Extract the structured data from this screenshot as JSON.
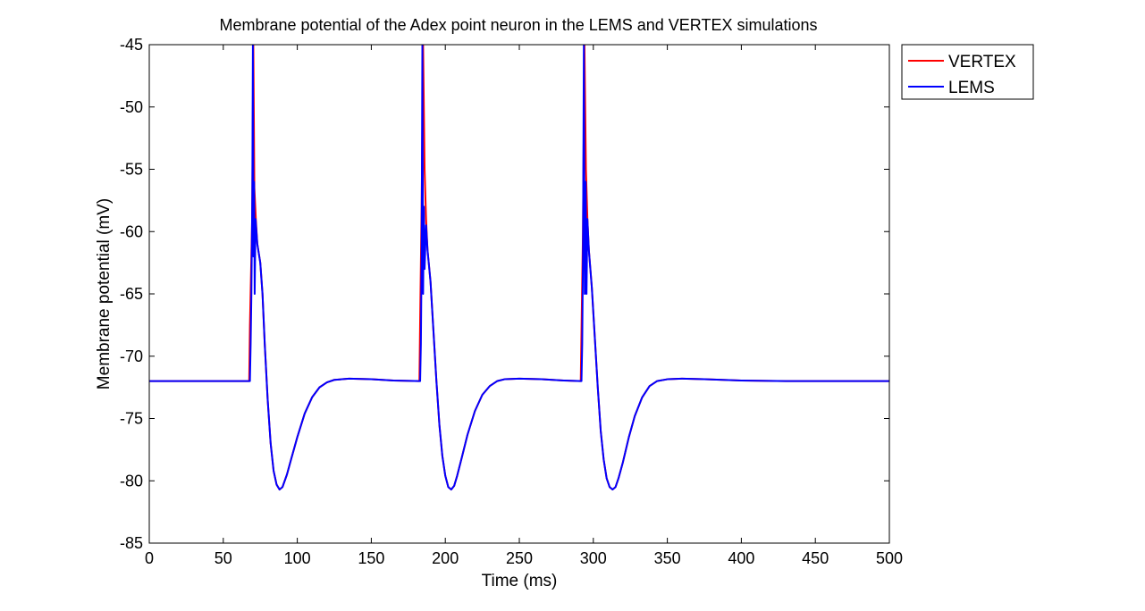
{
  "chart_data": {
    "type": "line",
    "title": "Membrane potential of the Adex point neuron in the LEMS and VERTEX simulations",
    "xlabel": "Time (ms)",
    "ylabel": "Membrane potential (mV)",
    "xlim": [
      0,
      500
    ],
    "ylim": [
      -85,
      -45
    ],
    "xticks": [
      "0",
      "50",
      "100",
      "150",
      "200",
      "250",
      "300",
      "350",
      "400",
      "450",
      "500"
    ],
    "yticks": [
      "-45",
      "-50",
      "-55",
      "-60",
      "-65",
      "-70",
      "-75",
      "-80",
      "-85"
    ],
    "grid": false,
    "legend_position": "outside-top-right",
    "series": [
      {
        "name": "VERTEX",
        "color": "#ff0000",
        "points": [
          [
            0,
            -72
          ],
          [
            67.5,
            -72
          ],
          [
            68,
            -67.5
          ],
          [
            69.5,
            -59
          ],
          [
            70.3,
            -45
          ],
          [
            71,
            -56.5
          ],
          [
            72,
            -59
          ],
          [
            73,
            -61
          ],
          [
            75,
            -62.5
          ],
          [
            76.5,
            -65
          ],
          [
            78,
            -69
          ],
          [
            80,
            -73.5
          ],
          [
            82,
            -77
          ],
          [
            84,
            -79.2
          ],
          [
            86,
            -80.3
          ],
          [
            88,
            -80.7
          ],
          [
            90,
            -80.5
          ],
          [
            93,
            -79.5
          ],
          [
            96,
            -78.2
          ],
          [
            100,
            -76.5
          ],
          [
            105,
            -74.6
          ],
          [
            110,
            -73.3
          ],
          [
            115,
            -72.5
          ],
          [
            120,
            -72.1
          ],
          [
            125,
            -71.9
          ],
          [
            135,
            -71.8
          ],
          [
            150,
            -71.85
          ],
          [
            165,
            -71.95
          ],
          [
            182.5,
            -72
          ],
          [
            183,
            -67
          ],
          [
            184,
            -58
          ],
          [
            185,
            -45
          ],
          [
            186,
            -55
          ],
          [
            187,
            -59
          ],
          [
            188,
            -61.5
          ],
          [
            190,
            -64
          ],
          [
            192,
            -68
          ],
          [
            194,
            -72
          ],
          [
            196,
            -75.5
          ],
          [
            198,
            -78
          ],
          [
            200,
            -79.6
          ],
          [
            202,
            -80.5
          ],
          [
            204,
            -80.7
          ],
          [
            206,
            -80.4
          ],
          [
            208,
            -79.6
          ],
          [
            211,
            -78.2
          ],
          [
            215,
            -76.3
          ],
          [
            220,
            -74.4
          ],
          [
            225,
            -73.1
          ],
          [
            230,
            -72.4
          ],
          [
            235,
            -72.0
          ],
          [
            240,
            -71.85
          ],
          [
            250,
            -71.8
          ],
          [
            265,
            -71.85
          ],
          [
            280,
            -71.95
          ],
          [
            291.5,
            -72
          ],
          [
            292,
            -68
          ],
          [
            293,
            -60
          ],
          [
            294,
            -45
          ],
          [
            295,
            -55
          ],
          [
            296,
            -59
          ],
          [
            297,
            -61.5
          ],
          [
            299,
            -64.5
          ],
          [
            301,
            -68.5
          ],
          [
            303,
            -72.5
          ],
          [
            305,
            -76
          ],
          [
            307,
            -78.3
          ],
          [
            309,
            -79.8
          ],
          [
            311,
            -80.5
          ],
          [
            313,
            -80.7
          ],
          [
            315,
            -80.5
          ],
          [
            317,
            -79.8
          ],
          [
            320,
            -78.5
          ],
          [
            324,
            -76.5
          ],
          [
            328,
            -74.8
          ],
          [
            333,
            -73.3
          ],
          [
            338,
            -72.4
          ],
          [
            343,
            -72.0
          ],
          [
            350,
            -71.85
          ],
          [
            360,
            -71.8
          ],
          [
            375,
            -71.85
          ],
          [
            400,
            -71.95
          ],
          [
            430,
            -72
          ],
          [
            500,
            -72
          ]
        ]
      },
      {
        "name": "LEMS",
        "color": "#0000ff",
        "points": [
          [
            0,
            -72
          ],
          [
            68,
            -72
          ],
          [
            68.5,
            -69
          ],
          [
            69,
            -65
          ],
          [
            69.6,
            -57
          ],
          [
            70,
            -45
          ],
          [
            70.4,
            -62
          ],
          [
            70.8,
            -56
          ],
          [
            71.2,
            -65
          ],
          [
            71.8,
            -59
          ],
          [
            73,
            -61
          ],
          [
            75,
            -62.5
          ],
          [
            76.5,
            -65
          ],
          [
            78,
            -69
          ],
          [
            80,
            -73.5
          ],
          [
            82,
            -77
          ],
          [
            84,
            -79.2
          ],
          [
            86,
            -80.3
          ],
          [
            88,
            -80.7
          ],
          [
            90,
            -80.5
          ],
          [
            93,
            -79.5
          ],
          [
            96,
            -78.2
          ],
          [
            100,
            -76.5
          ],
          [
            105,
            -74.6
          ],
          [
            110,
            -73.3
          ],
          [
            115,
            -72.5
          ],
          [
            120,
            -72.1
          ],
          [
            125,
            -71.9
          ],
          [
            135,
            -71.8
          ],
          [
            150,
            -71.85
          ],
          [
            165,
            -71.95
          ],
          [
            183,
            -72
          ],
          [
            183.5,
            -69
          ],
          [
            184,
            -62
          ],
          [
            184.5,
            -45
          ],
          [
            185,
            -65
          ],
          [
            185.5,
            -58
          ],
          [
            186,
            -63
          ],
          [
            187,
            -59.5
          ],
          [
            188,
            -61.5
          ],
          [
            190,
            -64
          ],
          [
            192,
            -68
          ],
          [
            194,
            -72
          ],
          [
            196,
            -75.5
          ],
          [
            198,
            -78
          ],
          [
            200,
            -79.6
          ],
          [
            202,
            -80.5
          ],
          [
            204,
            -80.7
          ],
          [
            206,
            -80.4
          ],
          [
            208,
            -79.6
          ],
          [
            211,
            -78.2
          ],
          [
            215,
            -76.3
          ],
          [
            220,
            -74.4
          ],
          [
            225,
            -73.1
          ],
          [
            230,
            -72.4
          ],
          [
            235,
            -72.0
          ],
          [
            240,
            -71.85
          ],
          [
            250,
            -71.8
          ],
          [
            265,
            -71.85
          ],
          [
            280,
            -71.95
          ],
          [
            292,
            -72
          ],
          [
            292.5,
            -69
          ],
          [
            293,
            -62
          ],
          [
            293.6,
            -45
          ],
          [
            294.2,
            -65
          ],
          [
            294.8,
            -56
          ],
          [
            295.4,
            -65
          ],
          [
            296,
            -59
          ],
          [
            297,
            -61.5
          ],
          [
            299,
            -64.5
          ],
          [
            301,
            -68.5
          ],
          [
            303,
            -72.5
          ],
          [
            305,
            -76
          ],
          [
            307,
            -78.3
          ],
          [
            309,
            -79.8
          ],
          [
            311,
            -80.5
          ],
          [
            313,
            -80.7
          ],
          [
            315,
            -80.5
          ],
          [
            317,
            -79.8
          ],
          [
            320,
            -78.5
          ],
          [
            324,
            -76.5
          ],
          [
            328,
            -74.8
          ],
          [
            333,
            -73.3
          ],
          [
            338,
            -72.4
          ],
          [
            343,
            -72.0
          ],
          [
            350,
            -71.85
          ],
          [
            360,
            -71.8
          ],
          [
            375,
            -71.85
          ],
          [
            400,
            -71.95
          ],
          [
            430,
            -72
          ],
          [
            500,
            -72
          ]
        ]
      }
    ]
  }
}
